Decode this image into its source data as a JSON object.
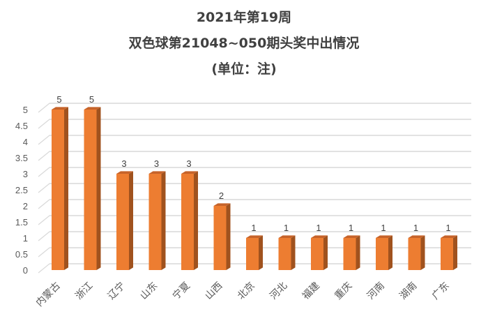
{
  "chart_data": {
    "type": "bar",
    "title": "2021年第19周",
    "subtitle": "双色球第21048~050期头奖中出情况",
    "unit_note": "(单位：注)",
    "xlabel": "",
    "ylabel": "",
    "categories": [
      "内蒙古",
      "浙江",
      "辽宁",
      "山东",
      "宁夏",
      "山西",
      "北京",
      "河北",
      "福建",
      "重庆",
      "河南",
      "湖南",
      "广东"
    ],
    "values": [
      5,
      5,
      3,
      3,
      3,
      2,
      1,
      1,
      1,
      1,
      1,
      1,
      1
    ],
    "ylim": [
      0,
      5
    ],
    "yticks": [
      "0",
      "0.5",
      "1",
      "1.5",
      "2",
      "2.5",
      "3",
      "3.5",
      "4",
      "4.5",
      "5"
    ],
    "grid": true,
    "legend": "none",
    "style": "3d-column",
    "colors": {
      "bar_front": "#ED7D31",
      "bar_side": "#A0521E",
      "bar_top": "#C6632A",
      "grid": "#D9D9D9"
    }
  }
}
